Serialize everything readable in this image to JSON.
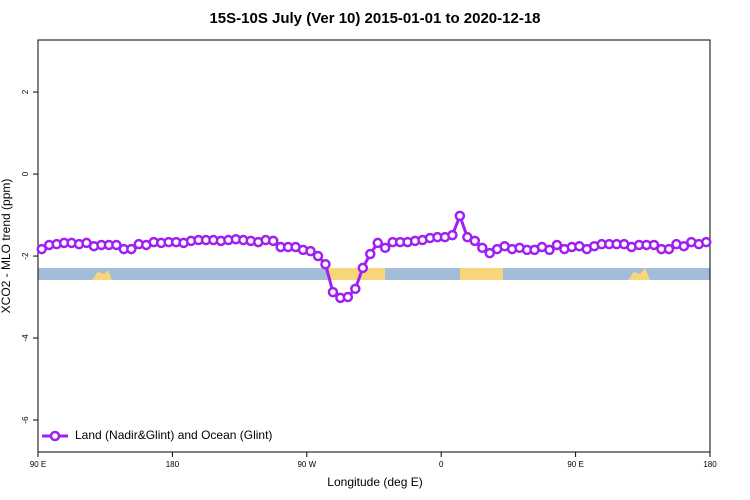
{
  "chart_data": {
    "type": "line",
    "title": "15S-10S July (Ver 10)   2015-01-01 to 2020-12-18",
    "x_label": "Longitude (deg E)",
    "y_label": "XCO2 - MLO trend (ppm)",
    "xlim": [
      90,
      540
    ],
    "xticks": [
      {
        "value": 90,
        "label": "90 E"
      },
      180,
      {
        "value": 270,
        "label": "90 W"
      },
      {
        "value": 360,
        "label": "0"
      },
      {
        "value": 450,
        "label": "90 E"
      },
      {
        "value": 540,
        "label": "180"
      }
    ],
    "ylim": [
      -6.78,
      3.27
    ],
    "yticks": [
      -6,
      -4,
      -2,
      0,
      2
    ],
    "legend": "bottom-left",
    "x": [
      92.5,
      97.5,
      102.5,
      107.5,
      112.5,
      117.5,
      122.5,
      127.5,
      132.5,
      137.5,
      142.5,
      147.5,
      152.5,
      157.5,
      162.5,
      167.5,
      172.5,
      177.5,
      182.5,
      187.5,
      192.5,
      197.5,
      202.5,
      207.5,
      212.5,
      217.5,
      222.5,
      227.5,
      232.5,
      237.5,
      242.5,
      247.5,
      252.5,
      257.5,
      262.5,
      267.5,
      272.5,
      277.5,
      282.5,
      287.5,
      292.5,
      297.5,
      302.5,
      307.5,
      312.5,
      317.5,
      322.5,
      327.5,
      332.5,
      337.5,
      342.5,
      347.5,
      352.5,
      357.5,
      362.5,
      367.5,
      372.5,
      377.5,
      382.5,
      387.5,
      392.5,
      397.5,
      402.5,
      407.5,
      412.5,
      417.5,
      422.5,
      427.5,
      432.5,
      437.5,
      442.5,
      447.5,
      452.5,
      457.5,
      462.5,
      467.5,
      472.5,
      477.5,
      482.5,
      487.5,
      492.5,
      497.5,
      502.5,
      507.5,
      512.5,
      517.5,
      522.5,
      527.5,
      532.5,
      537.5
    ],
    "series": [
      {
        "name": "Land (Nadir&Glint) and Ocean (Glint)",
        "color": "#a020f0",
        "values": [
          -1.83,
          -1.73,
          -1.71,
          -1.68,
          -1.68,
          -1.71,
          -1.68,
          -1.76,
          -1.73,
          -1.73,
          -1.73,
          -1.83,
          -1.83,
          -1.71,
          -1.73,
          -1.66,
          -1.68,
          -1.66,
          -1.66,
          -1.68,
          -1.63,
          -1.61,
          -1.61,
          -1.61,
          -1.63,
          -1.61,
          -1.59,
          -1.61,
          -1.63,
          -1.66,
          -1.61,
          -1.63,
          -1.78,
          -1.78,
          -1.78,
          -1.85,
          -1.88,
          -2.0,
          -2.2,
          -2.88,
          -3.02,
          -3.0,
          -2.8,
          -2.29,
          -1.95,
          -1.68,
          -1.8,
          -1.66,
          -1.66,
          -1.66,
          -1.63,
          -1.61,
          -1.56,
          -1.54,
          -1.54,
          -1.49,
          -1.02,
          -1.54,
          -1.63,
          -1.8,
          -1.93,
          -1.83,
          -1.76,
          -1.83,
          -1.8,
          -1.85,
          -1.85,
          -1.78,
          -1.85,
          -1.73,
          -1.83,
          -1.78,
          -1.76,
          -1.83,
          -1.76,
          -1.71,
          -1.71,
          -1.71,
          -1.71,
          -1.78,
          -1.73,
          -1.73,
          -1.73,
          -1.83,
          -1.83,
          -1.71,
          -1.76,
          -1.66,
          -1.71,
          -1.66
        ]
      }
    ]
  }
}
